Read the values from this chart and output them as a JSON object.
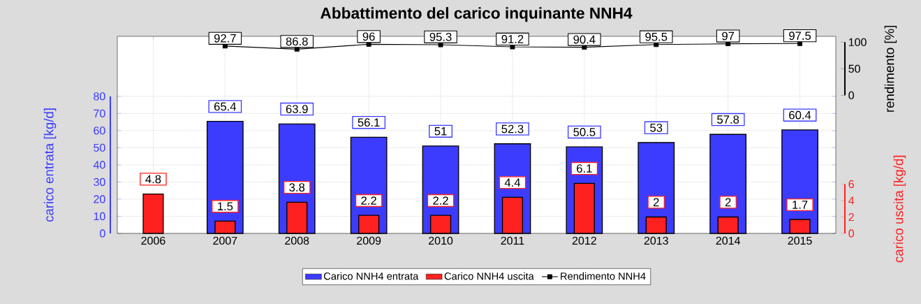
{
  "chart_data": {
    "type": "bar",
    "title": "Abbattimento del carico inquinante NNH4",
    "ylabel": "carico entrata [kg/d]",
    "y2label": "carico uscita [kg/d]",
    "y3label": "rendimento [%]",
    "categories": [
      "2006",
      "2007",
      "2008",
      "2009",
      "2010",
      "2011",
      "2012",
      "2013",
      "2014",
      "2015"
    ],
    "series": [
      {
        "name": "Carico NNH4 entrata",
        "color": "#3c3cff",
        "values": [
          null,
          65.4,
          63.9,
          56.1,
          51,
          52.3,
          50.5,
          53,
          57.8,
          60.4
        ]
      },
      {
        "name": "Carico NNH4 uscita",
        "color": "#ff2020",
        "axis": "y2",
        "values": [
          4.8,
          1.5,
          3.8,
          2.2,
          2.2,
          4.4,
          6.1,
          2,
          2,
          1.7
        ]
      },
      {
        "name": "Rendimento NNH4",
        "type": "line",
        "color": "#000000",
        "axis": "y3",
        "values": [
          null,
          92.7,
          86.8,
          96,
          95.3,
          91.2,
          90.4,
          95.5,
          97,
          97.5
        ]
      }
    ],
    "ylim": [
      0,
      115
    ],
    "yticks": [
      0,
      10,
      20,
      30,
      40,
      50,
      60,
      70,
      80
    ],
    "y2lim": [
      0,
      24
    ],
    "y2ticks": [
      0,
      2,
      4,
      6
    ],
    "y3lim": [
      -260,
      111
    ],
    "y3ticks": [
      0,
      50,
      100
    ],
    "marker": "square",
    "data_labels": true,
    "grid": true,
    "legend": "bottom"
  }
}
